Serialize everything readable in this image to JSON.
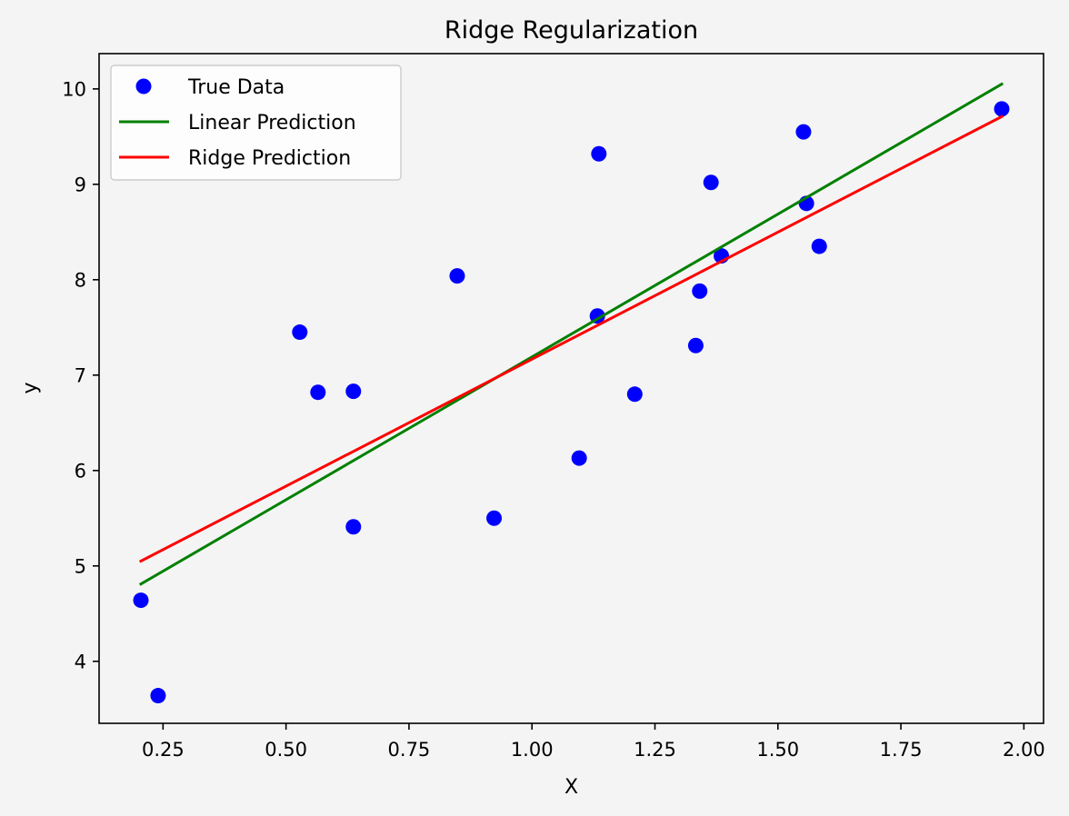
{
  "chart_data": {
    "type": "scatter",
    "title": "Ridge Regularization",
    "xlabel": "X",
    "ylabel": "y",
    "xlim": [
      0.12,
      2.04
    ],
    "ylim": [
      3.35,
      10.37
    ],
    "xticks": [
      0.25,
      0.5,
      0.75,
      1.0,
      1.25,
      1.5,
      1.75,
      2.0
    ],
    "xtick_labels": [
      "0.25",
      "0.50",
      "0.75",
      "1.00",
      "1.25",
      "1.50",
      "1.75",
      "2.00"
    ],
    "yticks": [
      4,
      5,
      6,
      7,
      8,
      9,
      10
    ],
    "ytick_labels": [
      "4",
      "5",
      "6",
      "7",
      "8",
      "9",
      "10"
    ],
    "grid": false,
    "legend_position": "top-left",
    "series": [
      {
        "name": "True Data",
        "kind": "scatter",
        "color": "#0000ff",
        "points": [
          [
            0.205,
            4.64
          ],
          [
            0.24,
            3.64
          ],
          [
            0.528,
            7.45
          ],
          [
            0.565,
            6.82
          ],
          [
            0.637,
            6.83
          ],
          [
            0.637,
            5.41
          ],
          [
            0.848,
            8.04
          ],
          [
            0.923,
            5.5
          ],
          [
            1.096,
            6.13
          ],
          [
            1.133,
            7.62
          ],
          [
            1.136,
            9.32
          ],
          [
            1.209,
            6.8
          ],
          [
            1.333,
            7.31
          ],
          [
            1.341,
            7.88
          ],
          [
            1.364,
            9.02
          ],
          [
            1.385,
            8.25
          ],
          [
            1.552,
            9.55
          ],
          [
            1.558,
            8.8
          ],
          [
            1.584,
            8.35
          ],
          [
            1.955,
            9.79
          ]
        ]
      },
      {
        "name": "Linear Prediction",
        "kind": "line",
        "color": "#008000",
        "points": [
          [
            0.205,
            4.81
          ],
          [
            1.955,
            10.05
          ]
        ]
      },
      {
        "name": "Ridge Prediction",
        "kind": "line",
        "color": "#ff0000",
        "points": [
          [
            0.205,
            5.05
          ],
          [
            1.955,
            9.71
          ]
        ]
      }
    ]
  }
}
